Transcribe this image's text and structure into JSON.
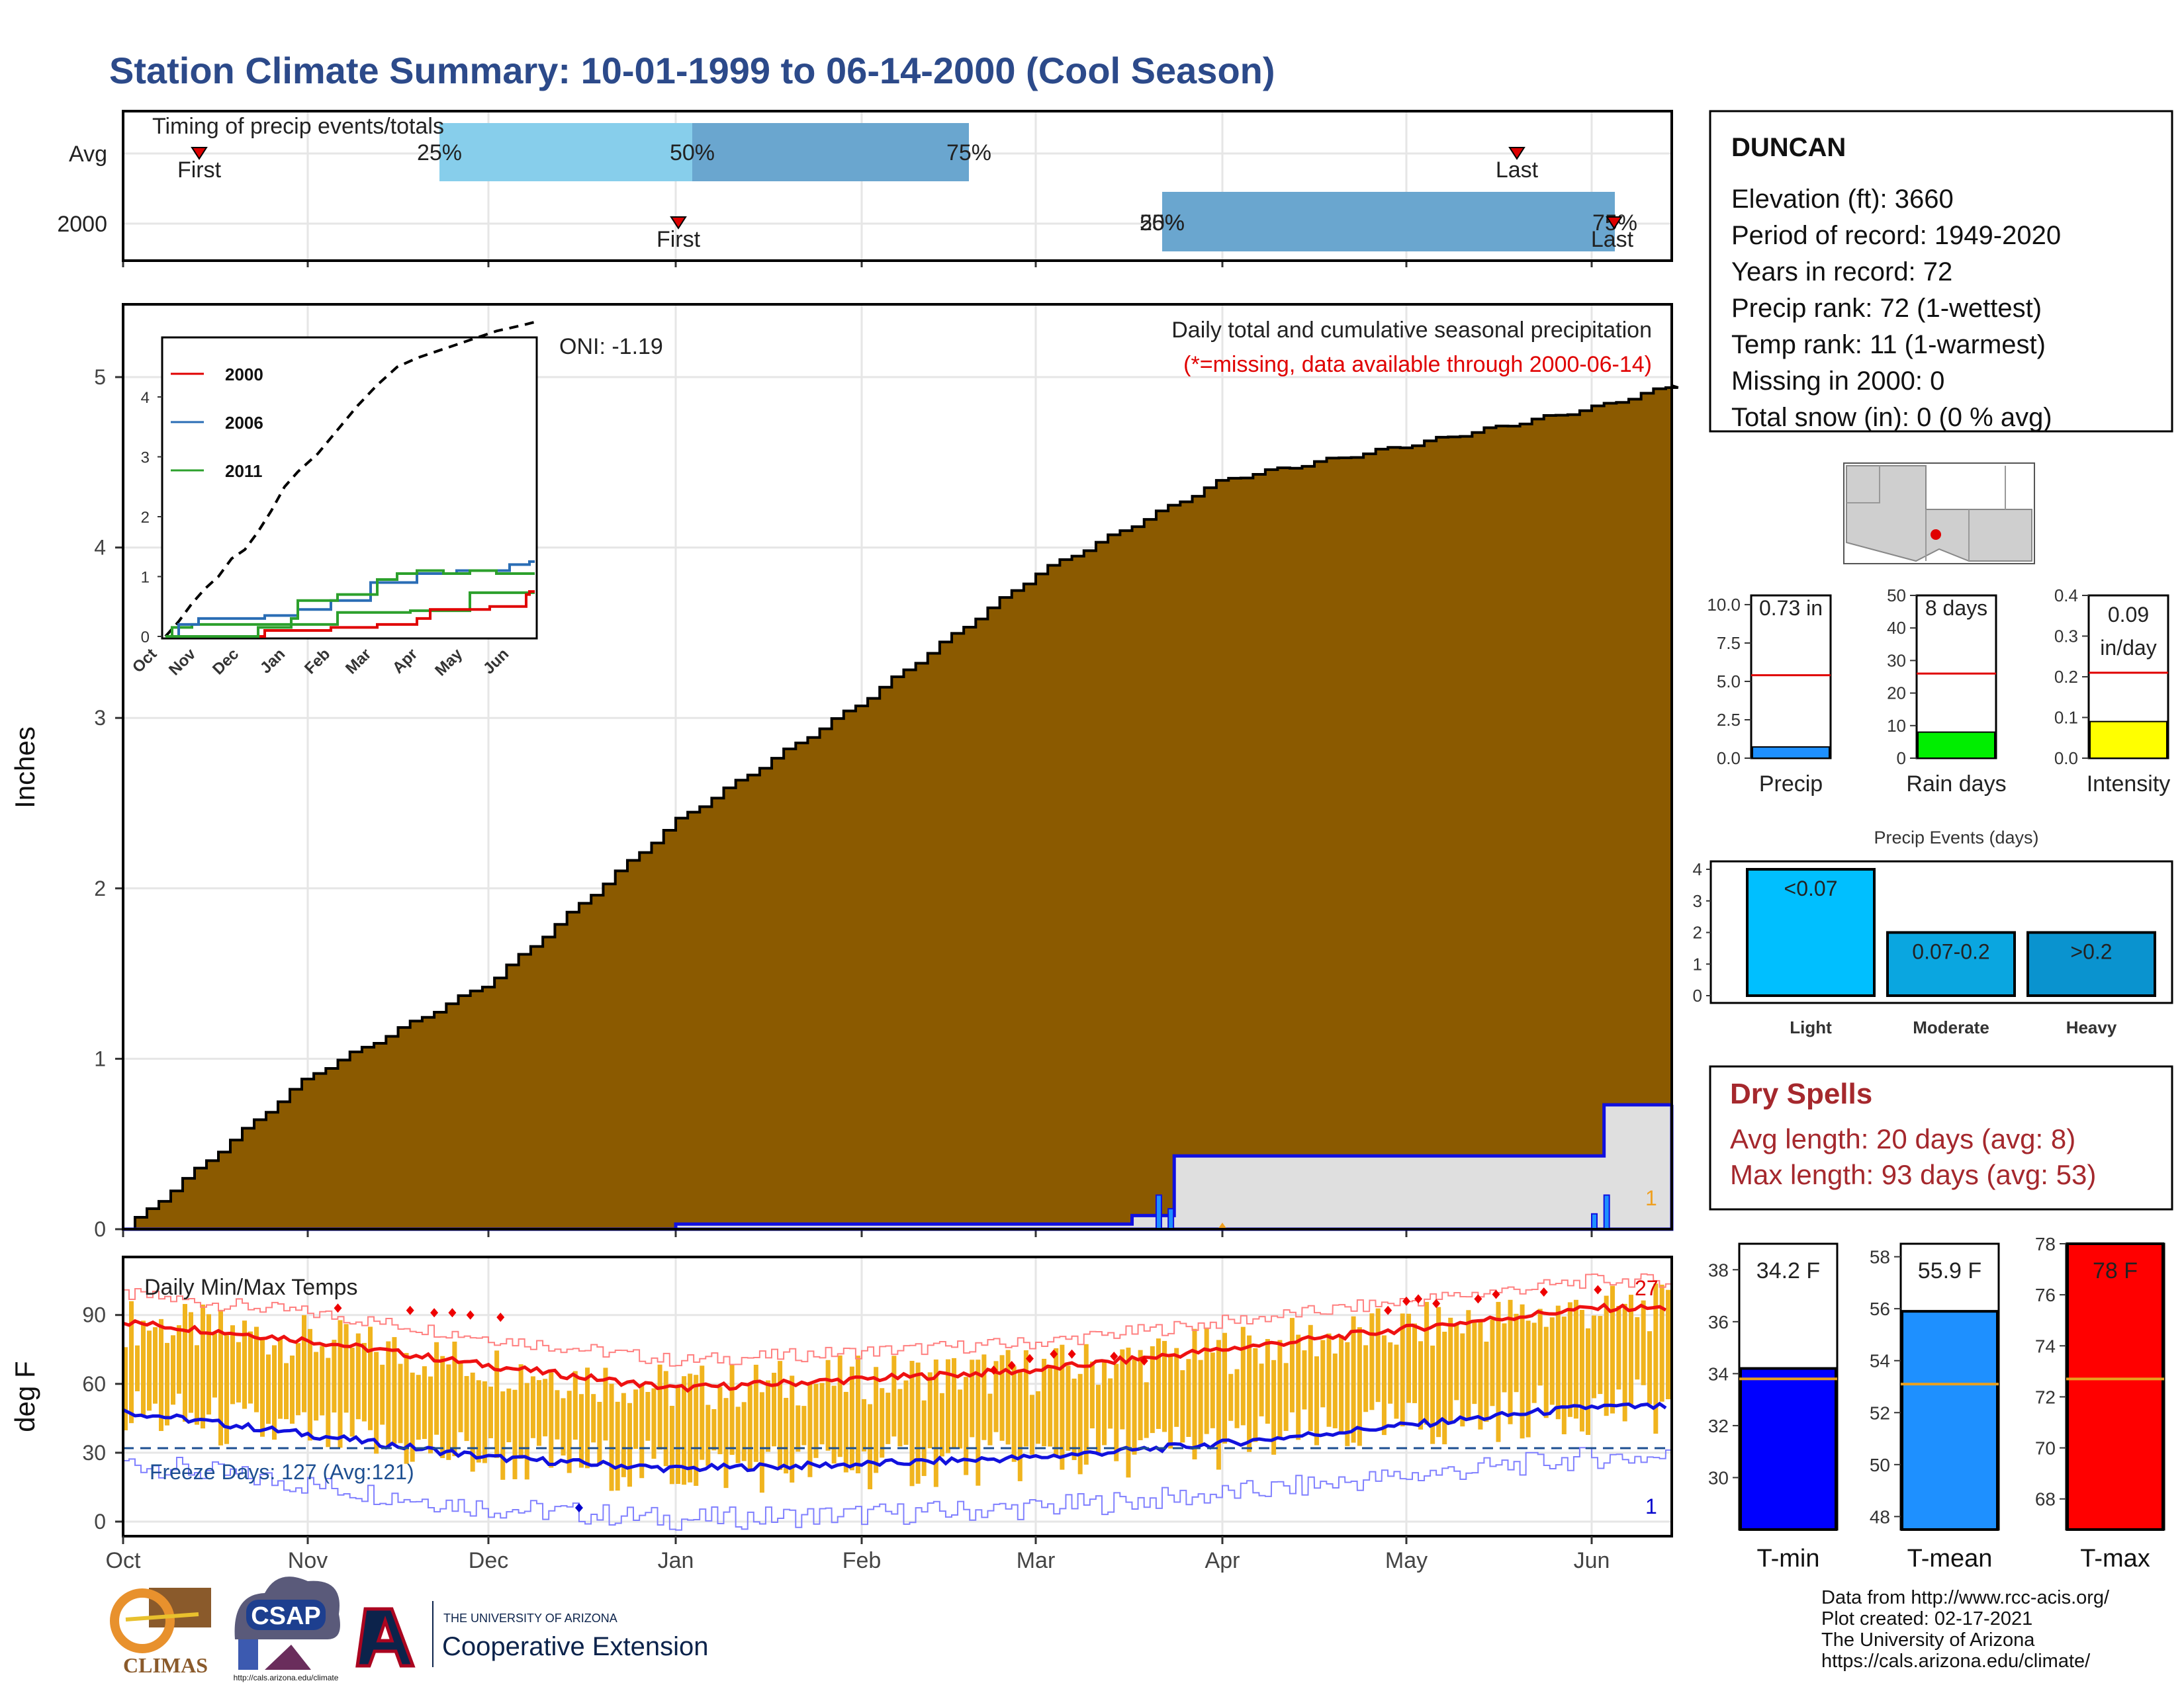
{
  "title": "Station Climate Summary: 10-01-1999 to 06-14-2000 (Cool Season)",
  "timing": {
    "label": "Timing of precip events/totals",
    "rows": [
      "Avg",
      "2000"
    ],
    "avg": {
      "first": "First",
      "last": "Last",
      "p25": "25%",
      "p50": "50%",
      "p75": "75%"
    },
    "y2000": {
      "first": "First",
      "last": "Last",
      "p25": "25%",
      "p50": "50%",
      "p75": "75%"
    }
  },
  "precip_panel": {
    "ylabel": "Inches",
    "yticks": [
      "0",
      "1",
      "2",
      "3",
      "4",
      "5"
    ],
    "oni": "ONI: -1.19",
    "caption": "Daily total and cumulative seasonal precipitation",
    "missing_note": "(*=missing, data available through 2000-06-14)",
    "count_label": "1"
  },
  "inset": {
    "legend": [
      "2000",
      "2006",
      "2011"
    ],
    "yticks": [
      "0",
      "1",
      "2",
      "3",
      "4"
    ],
    "months": [
      "Oct",
      "Nov",
      "Dec",
      "Jan",
      "Feb",
      "Mar",
      "Apr",
      "May",
      "Jun"
    ]
  },
  "temp_panel": {
    "label": "Daily Min/Max Temps",
    "ylabel": "deg F",
    "yticks": [
      "0",
      "30",
      "60",
      "90"
    ],
    "freeze": "Freeze Days: 127 (Avg:121)",
    "max_count": "27",
    "min_count": "1"
  },
  "months": [
    "Oct",
    "Nov",
    "Dec",
    "Jan",
    "Feb",
    "Mar",
    "Apr",
    "May",
    "Jun"
  ],
  "station": {
    "name": "DUNCAN",
    "lines": [
      "Elevation (ft): 3660",
      "Period of record: 1949-2020",
      "Years in record: 72",
      "Precip rank: 72 (1-wettest)",
      "Temp rank: 11 (1-warmest)",
      "Missing in 2000: 0",
      "Total snow (in): 0 (0 % avg)"
    ]
  },
  "mini_bars": [
    {
      "label": "Precip",
      "value_text": "0.73 in",
      "ticks": [
        "0.0",
        "2.5",
        "5.0",
        "7.5",
        "10.0"
      ],
      "value": 0.73,
      "avg": 5.4,
      "max": 10.6,
      "color": "#1e90ff"
    },
    {
      "label": "Rain days",
      "value_text": "8 days",
      "ticks": [
        "0",
        "10",
        "20",
        "30",
        "40",
        "50"
      ],
      "value": 8,
      "avg": 26,
      "max": 50,
      "color": "#00ee00"
    },
    {
      "label": "Intensity",
      "value_text_1": "0.09",
      "value_text_2": "in/day",
      "ticks": [
        "0.0",
        "0.1",
        "0.2",
        "0.3",
        "0.4"
      ],
      "value": 0.09,
      "avg": 0.21,
      "max": 0.4,
      "color": "#ffff00"
    }
  ],
  "events": {
    "title": "Precip Events (days)",
    "yticks": [
      "0",
      "1",
      "2",
      "3",
      "4"
    ],
    "bars": [
      {
        "cat": "Light",
        "range": "<0.07",
        "value": 4,
        "color": "#00bfff"
      },
      {
        "cat": "Moderate",
        "range": "0.07-0.2",
        "value": 2,
        "color": "#0aa6e0"
      },
      {
        "cat": "Heavy",
        "range": ">0.2",
        "value": 2,
        "color": "#0a93cf"
      }
    ]
  },
  "dry_spells": {
    "title": "Dry Spells",
    "avg": "Avg length: 20 days (avg: 8)",
    "max": "Max length: 93 days (avg: 53)"
  },
  "temp_bars": [
    {
      "label": "T-min",
      "value_text": "34.2 F",
      "ticks": [
        "30",
        "32",
        "34",
        "36",
        "38"
      ],
      "value": 34.2,
      "avg": 33.8,
      "min": 28,
      "max": 39,
      "color": "#0000ff"
    },
    {
      "label": "T-mean",
      "value_text": "55.9 F",
      "ticks": [
        "48",
        "50",
        "52",
        "54",
        "56",
        "58"
      ],
      "value": 55.9,
      "avg": 53.1,
      "min": 47.5,
      "max": 58.5,
      "color": "#1e90ff"
    },
    {
      "label": "T-max",
      "value_text": "78 F",
      "ticks": [
        "68",
        "70",
        "72",
        "74",
        "76",
        "78"
      ],
      "value": 78,
      "avg": 72.7,
      "min": 66.8,
      "max": 78,
      "color": "#ff0000"
    }
  ],
  "logos": {
    "climas": "CLIMAS",
    "csap": "CSAP",
    "csap_url": "http://cals.arizona.edu/climate",
    "ua_small": "THE UNIVERSITY OF ARIZONA",
    "ua_big": "Cooperative Extension"
  },
  "footer": [
    "Data from http://www.rcc-acis.org/",
    "Plot created: 02-17-2021",
    "The University of Arizona",
    "https://cals.arizona.edu/climate/"
  ],
  "chart_data": [
    {
      "type": "area",
      "title": "Daily total and cumulative seasonal precipitation",
      "ylabel": "Inches",
      "x": [
        "1999-10-01",
        "1999-11-01",
        "1999-12-01",
        "2000-01-01",
        "2000-02-01",
        "2000-03-01",
        "2000-04-01",
        "2000-05-01",
        "2000-06-01",
        "2000-06-14"
      ],
      "series": [
        {
          "name": "Average cumulative",
          "values": [
            0.0,
            0.9,
            1.45,
            2.4,
            3.1,
            3.85,
            4.4,
            4.6,
            4.82,
            4.95
          ]
        },
        {
          "name": "2000 cumulative",
          "values": [
            0.0,
            0.0,
            0.0,
            0.03,
            0.03,
            0.08,
            0.43,
            0.43,
            0.45,
            0.73
          ]
        }
      ],
      "ylim": [
        0,
        5.4
      ]
    },
    {
      "type": "line",
      "title": "Daily Min/Max Temps",
      "ylabel": "deg F",
      "x": [
        "Oct",
        "Nov",
        "Dec",
        "Jan",
        "Feb",
        "Mar",
        "Apr",
        "May",
        "Jun"
      ],
      "series": [
        {
          "name": "Avg max",
          "values": [
            87,
            79,
            68,
            58,
            62,
            66,
            75,
            84,
            93
          ]
        },
        {
          "name": "Avg min",
          "values": [
            48,
            38,
            28,
            23,
            25,
            28,
            34,
            42,
            50
          ]
        }
      ],
      "ylim": [
        -5,
        110
      ]
    }
  ]
}
